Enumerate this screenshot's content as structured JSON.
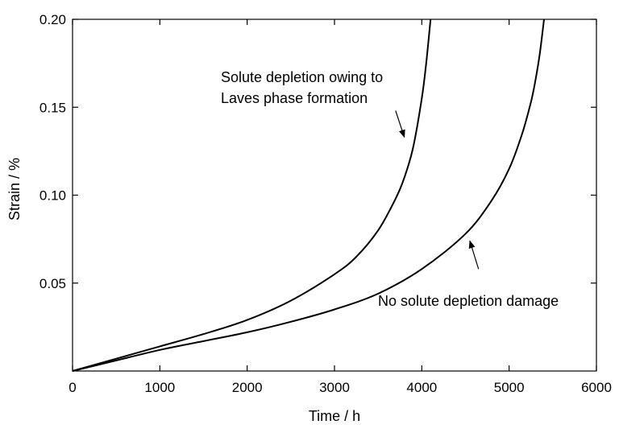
{
  "chart_data": {
    "type": "line",
    "xlabel": "Time / h",
    "ylabel": "Strain / %",
    "xlim": [
      0,
      6000
    ],
    "ylim": [
      0,
      0.2
    ],
    "x_ticks": [
      "0",
      "1000",
      "2000",
      "3000",
      "4000",
      "5000",
      "6000"
    ],
    "y_ticks": [
      "0.05",
      "0.10",
      "0.15",
      "0.20"
    ],
    "grid": false,
    "legend": "none",
    "series": [
      {
        "x": [
          0,
          500,
          1000,
          1500,
          2000,
          2500,
          3000,
          3250,
          3500,
          3700,
          3800,
          3900,
          4000,
          4050,
          4100
        ],
        "y": [
          0,
          0.007,
          0.014,
          0.021,
          0.029,
          0.04,
          0.055,
          0.065,
          0.08,
          0.098,
          0.11,
          0.127,
          0.155,
          0.175,
          0.2
        ]
      },
      {
        "x": [
          0,
          500,
          1000,
          1500,
          2000,
          2500,
          3000,
          3500,
          4000,
          4500,
          4800,
          5000,
          5150,
          5250,
          5300,
          5350,
          5400
        ],
        "y": [
          0,
          0.006,
          0.012,
          0.017,
          0.022,
          0.028,
          0.035,
          0.044,
          0.058,
          0.078,
          0.097,
          0.115,
          0.135,
          0.153,
          0.165,
          0.18,
          0.2
        ]
      }
    ],
    "annotations": [
      {
        "lines": [
          "Solute depletion owing to",
          "Laves phase formation"
        ],
        "arrow_from": [
          3700,
          0.148
        ],
        "arrow_to": [
          3800,
          0.133
        ]
      },
      {
        "lines": [
          "No solute depletion damage"
        ],
        "arrow_from": [
          4650,
          0.058
        ],
        "arrow_to": [
          4550,
          0.074
        ]
      }
    ]
  }
}
